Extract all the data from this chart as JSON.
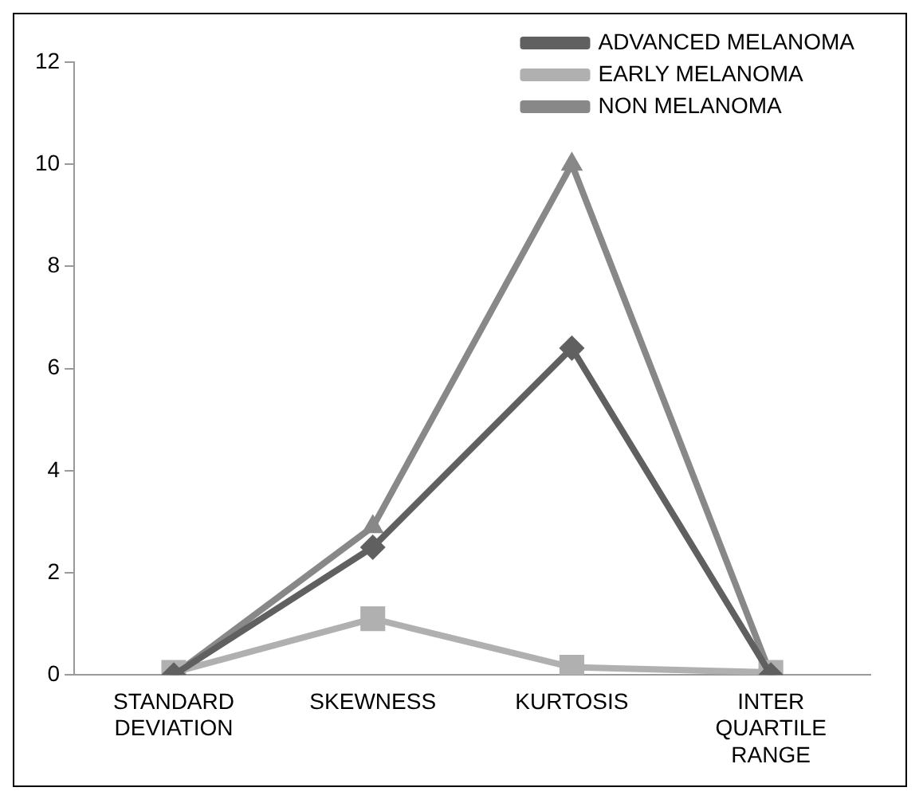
{
  "chart_data": {
    "type": "line",
    "categories": [
      "STANDARD DEVIATION",
      "SKEWNESS",
      "KURTOSIS",
      "INTER QUARTILE RANGE"
    ],
    "series": [
      {
        "name": "ADVANCED MELANOMA",
        "color": "#606060",
        "marker": "diamond",
        "values": [
          0,
          2.5,
          6.4,
          0
        ]
      },
      {
        "name": "EARLY MELANOMA",
        "color": "#b0b0b0",
        "marker": "square",
        "values": [
          0.05,
          1.1,
          0.15,
          0.05
        ]
      },
      {
        "name": "NON MELANOMA",
        "color": "#888888",
        "marker": "triangle",
        "values": [
          0,
          2.9,
          10,
          0
        ]
      }
    ],
    "ylim": [
      0,
      12
    ],
    "yticks": [
      0,
      2,
      4,
      6,
      8,
      10,
      12
    ],
    "grid": false,
    "legend": "top right",
    "line_style": "solid"
  }
}
